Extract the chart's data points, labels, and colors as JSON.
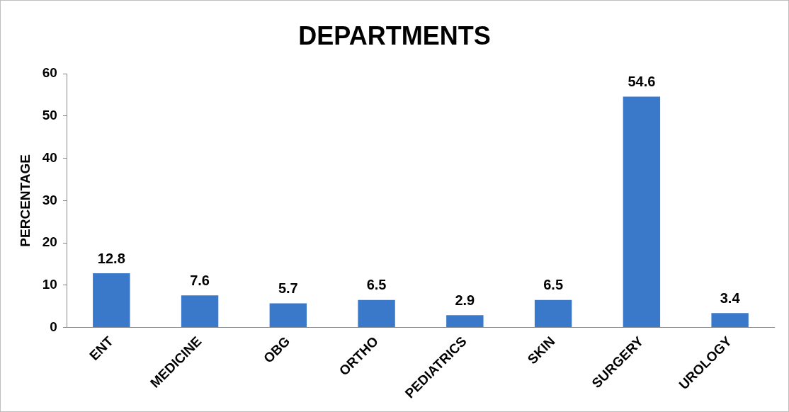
{
  "chart_data": {
    "type": "bar",
    "title": "DEPARTMENTS",
    "ylabel": "PERCENTAGE",
    "categories": [
      "ENT",
      "MEDICINE",
      "OBG",
      "ORTHO",
      "PEDIATRICS",
      "SKIN",
      "SURGERY",
      "UROLOGY"
    ],
    "values": [
      12.8,
      7.6,
      5.7,
      6.5,
      2.9,
      6.5,
      54.6,
      3.4
    ],
    "color": "#3a78c9",
    "ylim": [
      0,
      60
    ],
    "yticks": [
      0,
      10,
      20,
      30,
      40,
      50,
      60
    ],
    "grid": false,
    "legend": false,
    "data_labels": true
  }
}
